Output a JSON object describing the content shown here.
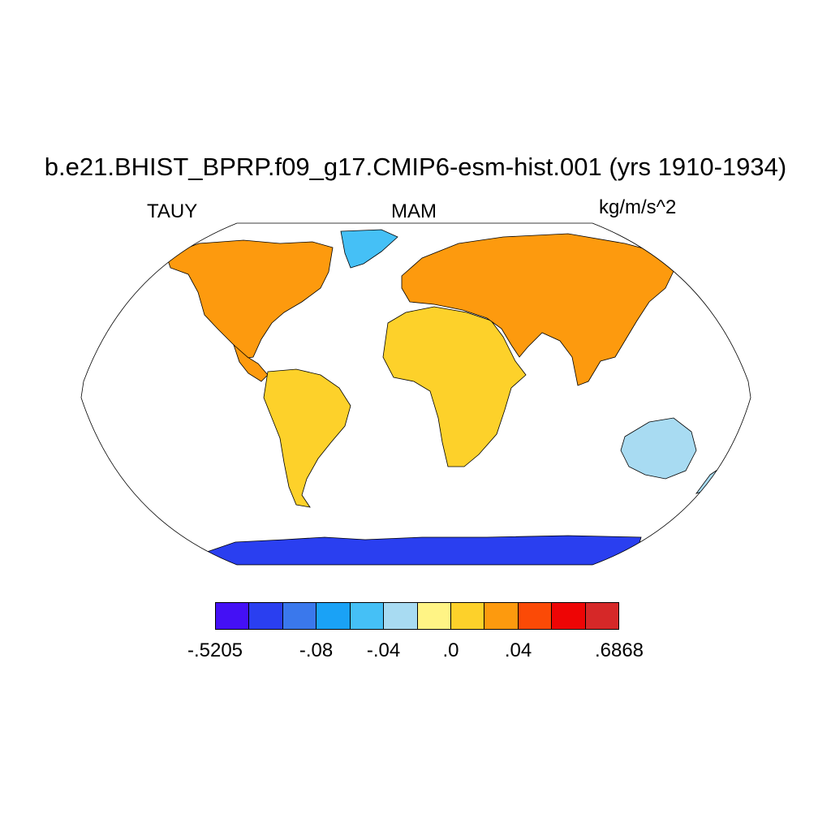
{
  "title": "b.e21.BHIST_BPRP.f09_g17.CMIP6-esm-hist.001 (yrs 1910-1934)",
  "left_label": "TAUY",
  "center_label": "MAM",
  "right_label": "kg/m/s^2",
  "colorbar": {
    "colors": [
      "#4410f5",
      "#2a3ff0",
      "#3a78ec",
      "#1aa2f6",
      "#45c0f6",
      "#a8dbf2",
      "#fff485",
      "#fdd12a",
      "#fd9a0e",
      "#fb4a06",
      "#ee0505",
      "#d62828"
    ],
    "labels": [
      {
        "text": "-.5205",
        "index": 0
      },
      {
        "text": "-.08",
        "index": 3
      },
      {
        "text": "-.04",
        "index": 5
      },
      {
        "text": ".0",
        "index": 7
      },
      {
        "text": ".04",
        "index": 9
      },
      {
        "text": ".6868",
        "index": 12
      }
    ]
  },
  "map": {
    "projection": "robinson",
    "regions": [
      {
        "name": "north-america",
        "color": "#fd9a0e"
      },
      {
        "name": "south-america",
        "color": "#fdd12a"
      },
      {
        "name": "africa",
        "color": "#fdd12a"
      },
      {
        "name": "eurasia",
        "color": "#fd9a0e"
      },
      {
        "name": "australia",
        "color": "#a8dbf2"
      },
      {
        "name": "greenland",
        "color": "#45c0f6"
      },
      {
        "name": "antarctica",
        "color": "#2a3ff0"
      }
    ]
  }
}
